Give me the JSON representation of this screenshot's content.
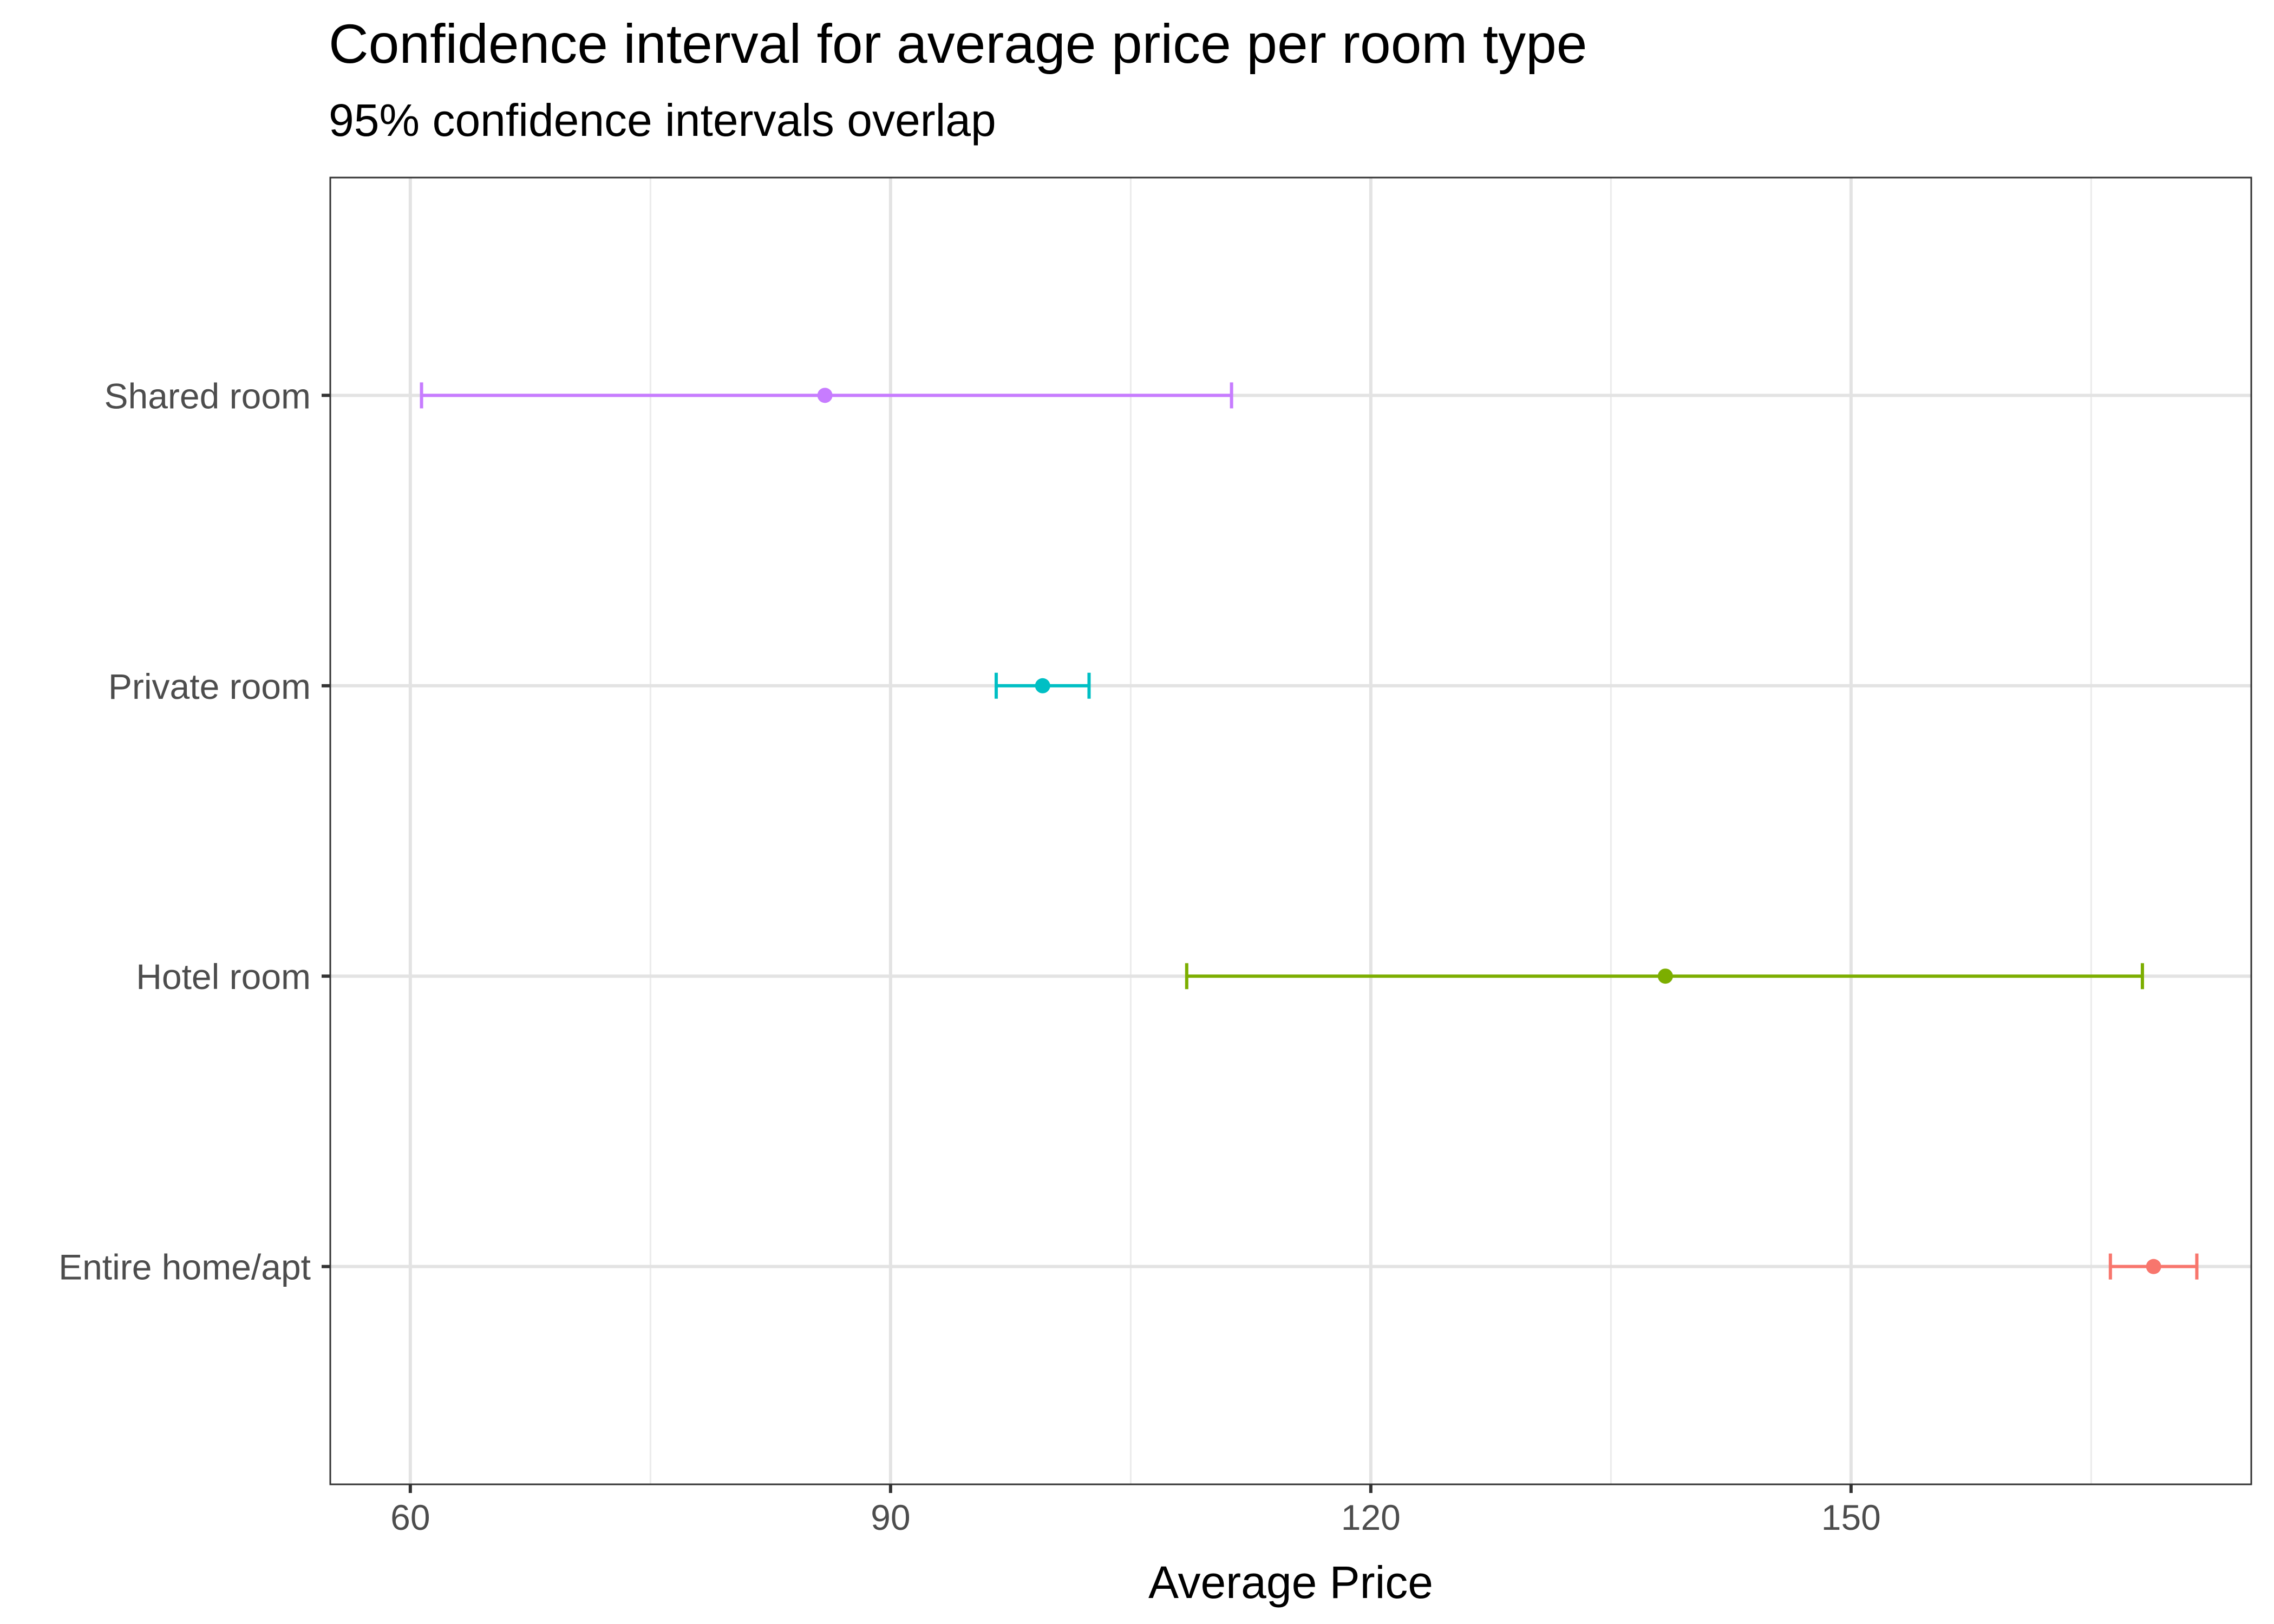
{
  "chart_data": {
    "type": "errorbar",
    "title": "Confidence interval for average price per room type",
    "subtitle": "95% confidence intervals overlap",
    "xlabel": "Average Price",
    "ylabel": "",
    "xlim": [
      55,
      175
    ],
    "x_ticks": [
      60,
      90,
      120,
      150
    ],
    "x_tick_labels": [
      "60",
      "90",
      "120",
      "150"
    ],
    "grid": true,
    "legend": "none",
    "categories": [
      "Entire home/apt",
      "Hotel room",
      "Private room",
      "Shared room"
    ],
    "series": [
      {
        "category": "Entire home/apt",
        "mean": 168.9,
        "lower": 166.2,
        "upper": 171.6,
        "color": "#F8766D"
      },
      {
        "category": "Hotel room",
        "mean": 138.4,
        "lower": 108.5,
        "upper": 168.2,
        "color": "#7CAE00"
      },
      {
        "category": "Private room",
        "mean": 99.5,
        "lower": 96.6,
        "upper": 102.4,
        "color": "#00BFC4"
      },
      {
        "category": "Shared room",
        "mean": 85.9,
        "lower": 60.7,
        "upper": 111.3,
        "color": "#C77CFF"
      }
    ]
  }
}
